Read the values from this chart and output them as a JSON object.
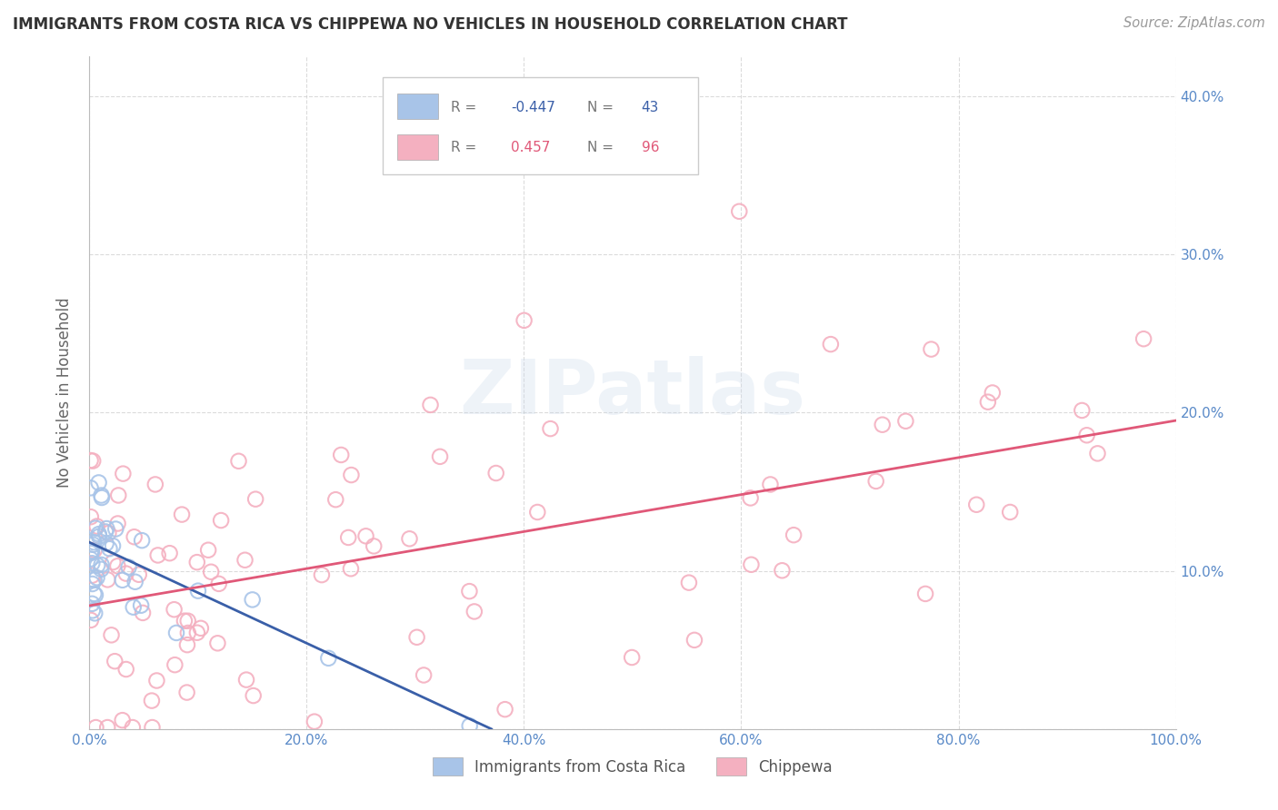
{
  "title": "IMMIGRANTS FROM COSTA RICA VS CHIPPEWA NO VEHICLES IN HOUSEHOLD CORRELATION CHART",
  "source": "Source: ZipAtlas.com",
  "ylabel": "No Vehicles in Household",
  "xlim": [
    0.0,
    1.0
  ],
  "ylim": [
    0.0,
    0.425
  ],
  "xticks": [
    0.0,
    0.2,
    0.4,
    0.6,
    0.8,
    1.0
  ],
  "xticklabels": [
    "0.0%",
    "20.0%",
    "40.0%",
    "60.0%",
    "80.0%",
    "100.0%"
  ],
  "yticks": [
    0.0,
    0.1,
    0.2,
    0.3,
    0.4
  ],
  "yticklabels_right": [
    "",
    "10.0%",
    "20.0%",
    "30.0%",
    "40.0%"
  ],
  "blue_color": "#a8c4e8",
  "pink_color": "#f4b0c0",
  "blue_line_color": "#3a5fa8",
  "pink_line_color": "#e05878",
  "watermark": "ZIPatlas",
  "title_fontsize": 12,
  "axis_tick_color": "#5a8ac8",
  "blue_line_x0": 0.0,
  "blue_line_y0": 0.118,
  "blue_line_x1": 0.37,
  "blue_line_y1": 0.0,
  "pink_line_x0": 0.0,
  "pink_line_y0": 0.078,
  "pink_line_x1": 1.0,
  "pink_line_y1": 0.195,
  "legend_r_blue": "-0.447",
  "legend_n_blue": "43",
  "legend_r_pink": "0.457",
  "legend_n_pink": "96",
  "circle_size": 140,
  "circle_linewidth": 1.5
}
